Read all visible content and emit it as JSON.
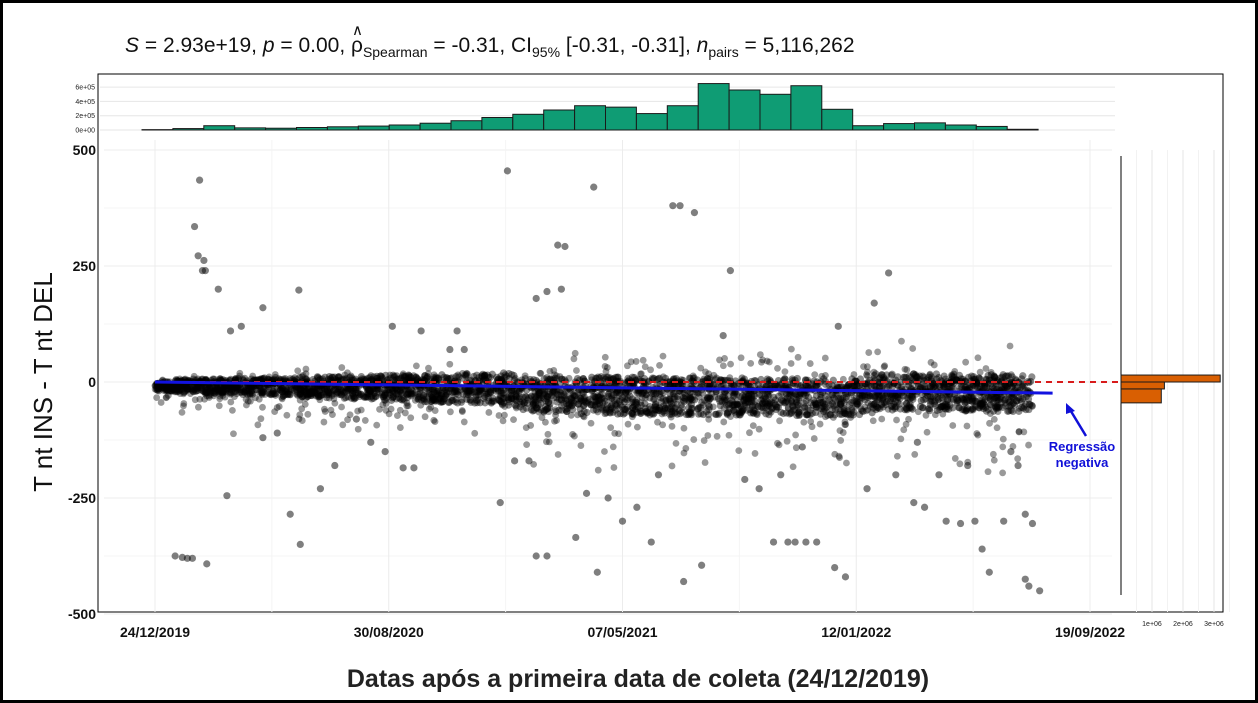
{
  "title": {
    "S": "2.93e+19",
    "p": "0.00",
    "rho": "-0.31",
    "ci_low": "-0.31",
    "ci_high": "-0.31",
    "n_pairs": "5,116,262",
    "S_label": "S",
    "p_label": "p",
    "rho_symbol": "ρ",
    "rho_sub": "Spearman",
    "ci_label": "CI",
    "ci_sub": "95%",
    "n_label": "n",
    "n_sub": "pairs"
  },
  "chart_data": {
    "type": "scatter",
    "xlabel": "Datas após a primeira data de coleta (24/12/2019)",
    "ylabel": "T nt INS - T nt DEL",
    "x_ticks": [
      "24/12/2019",
      "30/08/2020",
      "07/05/2021",
      "12/01/2022",
      "19/09/2022"
    ],
    "xlim": [
      "24/12/2019",
      "19/09/2022"
    ],
    "y_ticks": [
      500,
      250,
      0,
      -250,
      -500
    ],
    "ylim": [
      -500,
      500
    ],
    "grid": true,
    "reference_line": {
      "y": 0,
      "style": "dashed",
      "color": "#d81b1b"
    },
    "regression": {
      "x_start": "24/12/2019",
      "x_end": "10/08/2022",
      "y_start": 0,
      "y_end": -24,
      "color": "#1212e0"
    },
    "annotation": {
      "line1": "Regressão",
      "line2": "negativa",
      "color": "#1010d8"
    },
    "point_color": "#000000",
    "top_histogram": {
      "color": "#0f9c74",
      "y_ticks": [
        "6e+05",
        "4e+05",
        "2e+05",
        "0e+00"
      ],
      "counts": [
        5000,
        20000,
        60000,
        30000,
        25000,
        35000,
        45000,
        55000,
        70000,
        95000,
        130000,
        175000,
        220000,
        280000,
        340000,
        320000,
        230000,
        340000,
        650000,
        560000,
        500000,
        620000,
        290000,
        60000,
        90000,
        100000,
        70000,
        50000,
        10000
      ]
    },
    "right_histogram": {
      "color": "#d95f02",
      "x_ticks": [
        "1e+06",
        "2e+06",
        "3e+06"
      ],
      "bins": [
        {
          "y_from": 0,
          "y_to": 15,
          "count": 3200000
        },
        {
          "y_from": -15,
          "y_to": 0,
          "count": 1400000
        },
        {
          "y_from": -45,
          "y_to": -15,
          "count": 1300000
        }
      ]
    },
    "outliers": [
      [
        0.62,
        435
      ],
      [
        0.55,
        335
      ],
      [
        0.6,
        272
      ],
      [
        0.68,
        262
      ],
      [
        0.66,
        240
      ],
      [
        0.7,
        240
      ],
      [
        0.88,
        200
      ],
      [
        1.5,
        160
      ],
      [
        4.9,
        455
      ],
      [
        6.1,
        420
      ],
      [
        5.6,
        295
      ],
      [
        5.7,
        292
      ],
      [
        5.45,
        195
      ],
      [
        5.3,
        180
      ],
      [
        5.65,
        200
      ],
      [
        7.2,
        380
      ],
      [
        7.3,
        380
      ],
      [
        7.5,
        365
      ],
      [
        8.0,
        240
      ],
      [
        10.2,
        235
      ],
      [
        10.0,
        170
      ],
      [
        9.5,
        120
      ],
      [
        7.9,
        100
      ],
      [
        2.0,
        198
      ],
      [
        3.3,
        120
      ],
      [
        3.7,
        110
      ],
      [
        4.2,
        110
      ],
      [
        4.1,
        70
      ],
      [
        4.3,
        70
      ],
      [
        1.2,
        120
      ],
      [
        1.05,
        110
      ],
      [
        0.28,
        -375
      ],
      [
        0.38,
        -378
      ],
      [
        0.45,
        -380
      ],
      [
        0.52,
        -380
      ],
      [
        0.72,
        -392
      ],
      [
        1.0,
        -245
      ],
      [
        1.88,
        -285
      ],
      [
        2.02,
        -350
      ],
      [
        2.3,
        -230
      ],
      [
        3.45,
        -185
      ],
      [
        3.6,
        -185
      ],
      [
        5.3,
        -375
      ],
      [
        5.45,
        -375
      ],
      [
        6.15,
        -410
      ],
      [
        5.85,
        -335
      ],
      [
        6.9,
        -345
      ],
      [
        7.35,
        -430
      ],
      [
        7.6,
        -395
      ],
      [
        8.6,
        -345
      ],
      [
        8.8,
        -345
      ],
      [
        8.9,
        -345
      ],
      [
        9.05,
        -345
      ],
      [
        9.2,
        -345
      ],
      [
        9.45,
        -400
      ],
      [
        9.6,
        -420
      ],
      [
        10.55,
        -260
      ],
      [
        10.7,
        -270
      ],
      [
        11.0,
        -300
      ],
      [
        11.2,
        -305
      ],
      [
        11.4,
        -300
      ],
      [
        11.8,
        -300
      ],
      [
        12.1,
        -285
      ],
      [
        12.2,
        -305
      ],
      [
        11.5,
        -360
      ],
      [
        11.6,
        -410
      ],
      [
        12.15,
        -440
      ],
      [
        12.3,
        -450
      ],
      [
        12.1,
        -425
      ],
      [
        2.5,
        -180
      ],
      [
        3.0,
        -130
      ],
      [
        5.0,
        -170
      ],
      [
        5.2,
        -170
      ],
      [
        6.5,
        -300
      ],
      [
        6.7,
        -270
      ],
      [
        7.0,
        -200
      ],
      [
        8.2,
        -210
      ],
      [
        8.4,
        -230
      ],
      [
        8.7,
        -200
      ],
      [
        9.9,
        -230
      ],
      [
        10.3,
        -200
      ],
      [
        10.9,
        -200
      ],
      [
        11.3,
        -180
      ],
      [
        11.9,
        -150
      ],
      [
        12.0,
        -180
      ],
      [
        4.8,
        -260
      ],
      [
        6.3,
        -250
      ],
      [
        9.0,
        -140
      ],
      [
        10.6,
        -130
      ],
      [
        3.2,
        -150
      ],
      [
        1.5,
        -120
      ],
      [
        1.7,
        -110
      ],
      [
        2.8,
        -80
      ],
      [
        6.0,
        -240
      ]
    ]
  }
}
